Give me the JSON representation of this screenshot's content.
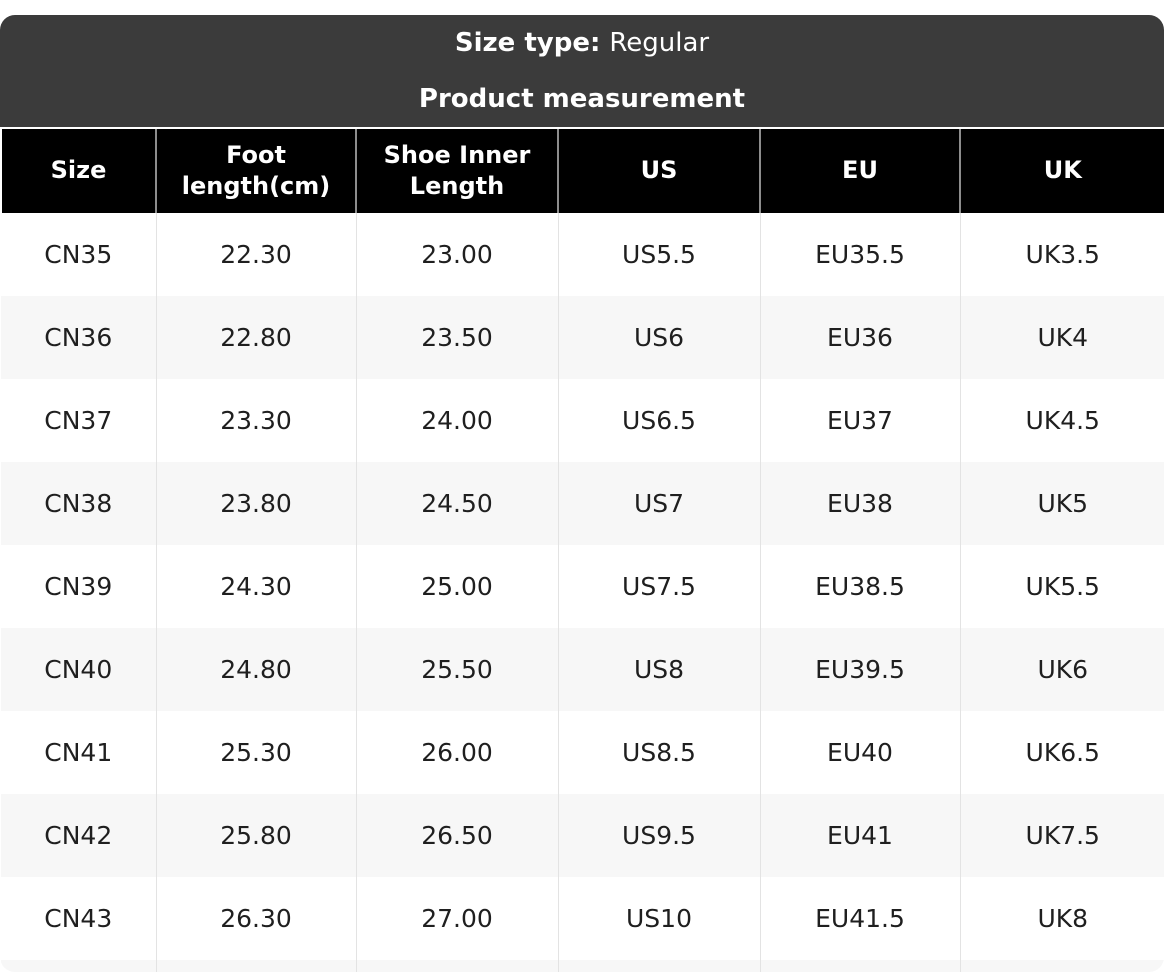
{
  "banner": {
    "size_type_label": "Size type:",
    "size_type_value": "Regular",
    "subtitle": "Product measurement"
  },
  "table": {
    "columns": [
      "Size",
      "Foot length(cm)",
      "Shoe Inner Length",
      "US",
      "EU",
      "UK"
    ],
    "rows": [
      [
        "CN35",
        "22.30",
        "23.00",
        "US5.5",
        "EU35.5",
        "UK3.5"
      ],
      [
        "CN36",
        "22.80",
        "23.50",
        "US6",
        "EU36",
        "UK4"
      ],
      [
        "CN37",
        "23.30",
        "24.00",
        "US6.5",
        "EU37",
        "UK4.5"
      ],
      [
        "CN38",
        "23.80",
        "24.50",
        "US7",
        "EU38",
        "UK5"
      ],
      [
        "CN39",
        "24.30",
        "25.00",
        "US7.5",
        "EU38.5",
        "UK5.5"
      ],
      [
        "CN40",
        "24.80",
        "25.50",
        "US8",
        "EU39.5",
        "UK6"
      ],
      [
        "CN41",
        "25.30",
        "26.00",
        "US8.5",
        "EU40",
        "UK6.5"
      ],
      [
        "CN42",
        "25.80",
        "26.50",
        "US9.5",
        "EU41",
        "UK7.5"
      ],
      [
        "CN43",
        "26.30",
        "27.00",
        "US10",
        "EU41.5",
        "UK8"
      ]
    ]
  },
  "colors": {
    "banner_bg": "#3b3b3b",
    "header_bg": "#000000",
    "header_text": "#ffffff",
    "row_alt_bg": "#f7f7f7",
    "body_text": "#1f1f1f",
    "header_separator": "#8d8d8d",
    "body_separator": "#e3e3e3"
  },
  "chart_data": {
    "type": "table",
    "title": "Product measurement",
    "size_type": "Regular",
    "columns": [
      "Size",
      "Foot length(cm)",
      "Shoe Inner Length",
      "US",
      "EU",
      "UK"
    ],
    "rows": [
      [
        "CN35",
        22.3,
        23.0,
        "US5.5",
        "EU35.5",
        "UK3.5"
      ],
      [
        "CN36",
        22.8,
        23.5,
        "US6",
        "EU36",
        "UK4"
      ],
      [
        "CN37",
        23.3,
        24.0,
        "US6.5",
        "EU37",
        "UK4.5"
      ],
      [
        "CN38",
        23.8,
        24.5,
        "US7",
        "EU38",
        "UK5"
      ],
      [
        "CN39",
        24.3,
        25.0,
        "US7.5",
        "EU38.5",
        "UK5.5"
      ],
      [
        "CN40",
        24.8,
        25.5,
        "US8",
        "EU39.5",
        "UK6"
      ],
      [
        "CN41",
        25.3,
        26.0,
        "US8.5",
        "EU40",
        "UK6.5"
      ],
      [
        "CN42",
        25.8,
        26.5,
        "US9.5",
        "EU41",
        "UK7.5"
      ],
      [
        "CN43",
        26.3,
        27.0,
        "US10",
        "EU41.5",
        "UK8"
      ]
    ]
  }
}
